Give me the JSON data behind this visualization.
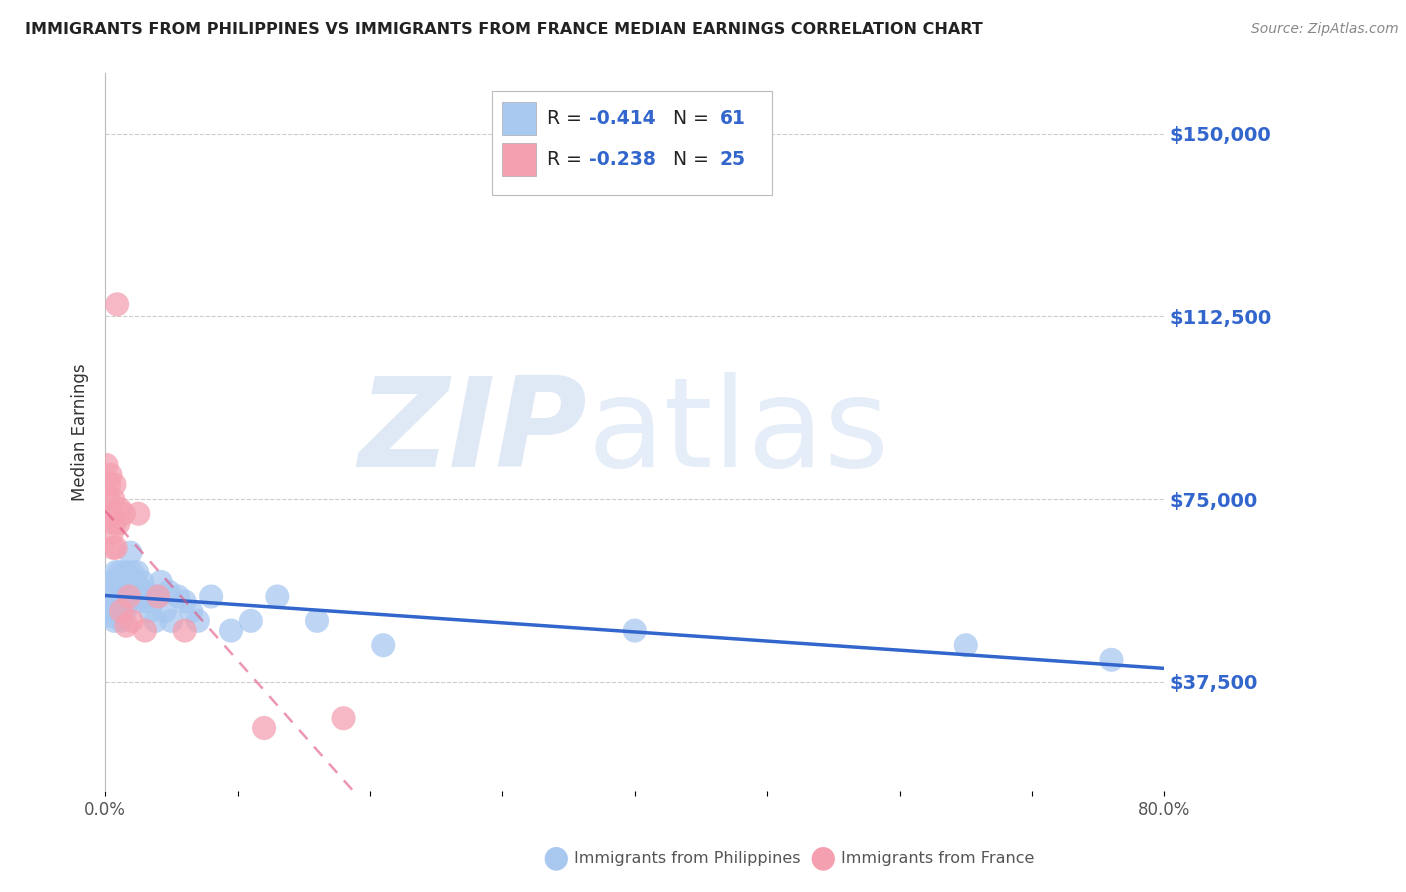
{
  "title": "IMMIGRANTS FROM PHILIPPINES VS IMMIGRANTS FROM FRANCE MEDIAN EARNINGS CORRELATION CHART",
  "source": "Source: ZipAtlas.com",
  "ylabel": "Median Earnings",
  "yticks": [
    37500,
    75000,
    112500,
    150000
  ],
  "ymin": 15000,
  "ymax": 162500,
  "xmin": 0.0,
  "xmax": 0.8,
  "philippines_color": "#A8C8F0",
  "france_color": "#F4A0B0",
  "philippines_R": -0.414,
  "philippines_N": 61,
  "france_R": -0.238,
  "france_N": 25,
  "regression_color_philippines": "#3366CC",
  "regression_color_france": "#E05080",
  "watermark_zip_color": "#C0D4EE",
  "watermark_atlas_color": "#C0D4EE",
  "axis_color": "#3366CC",
  "title_color": "#222222",
  "source_color": "#888888",
  "background_color": "#FFFFFF",
  "grid_color": "#CCCCCC",
  "philippines_x": [
    0.001,
    0.002,
    0.003,
    0.003,
    0.004,
    0.004,
    0.005,
    0.005,
    0.006,
    0.006,
    0.007,
    0.007,
    0.008,
    0.008,
    0.009,
    0.009,
    0.01,
    0.01,
    0.011,
    0.011,
    0.012,
    0.012,
    0.013,
    0.013,
    0.014,
    0.015,
    0.015,
    0.016,
    0.017,
    0.018,
    0.019,
    0.02,
    0.022,
    0.023,
    0.024,
    0.025,
    0.026,
    0.028,
    0.03,
    0.032,
    0.034,
    0.036,
    0.038,
    0.04,
    0.042,
    0.045,
    0.048,
    0.05,
    0.055,
    0.06,
    0.065,
    0.07,
    0.08,
    0.095,
    0.11,
    0.13,
    0.16,
    0.21,
    0.4,
    0.65,
    0.76
  ],
  "philippines_y": [
    55000,
    52000,
    57000,
    54000,
    56000,
    51000,
    53000,
    58000,
    52000,
    56000,
    54000,
    50000,
    55000,
    60000,
    53000,
    57000,
    56000,
    52000,
    55000,
    60000,
    54000,
    50000,
    57000,
    53000,
    55000,
    60000,
    52000,
    56000,
    58000,
    54000,
    64000,
    60000,
    58000,
    55000,
    60000,
    57000,
    54000,
    58000,
    56000,
    54000,
    52000,
    55000,
    50000,
    55000,
    58000,
    52000,
    56000,
    50000,
    55000,
    54000,
    52000,
    50000,
    55000,
    48000,
    50000,
    55000,
    50000,
    45000,
    48000,
    45000,
    42000
  ],
  "france_x": [
    0.001,
    0.002,
    0.003,
    0.004,
    0.004,
    0.005,
    0.006,
    0.006,
    0.007,
    0.007,
    0.008,
    0.009,
    0.01,
    0.011,
    0.012,
    0.014,
    0.016,
    0.018,
    0.02,
    0.025,
    0.03,
    0.04,
    0.06,
    0.12,
    0.18
  ],
  "france_y": [
    82000,
    75000,
    78000,
    72000,
    80000,
    68000,
    75000,
    65000,
    70000,
    78000,
    65000,
    115000,
    70000,
    73000,
    52000,
    72000,
    49000,
    55000,
    50000,
    72000,
    48000,
    55000,
    48000,
    28000,
    30000
  ]
}
